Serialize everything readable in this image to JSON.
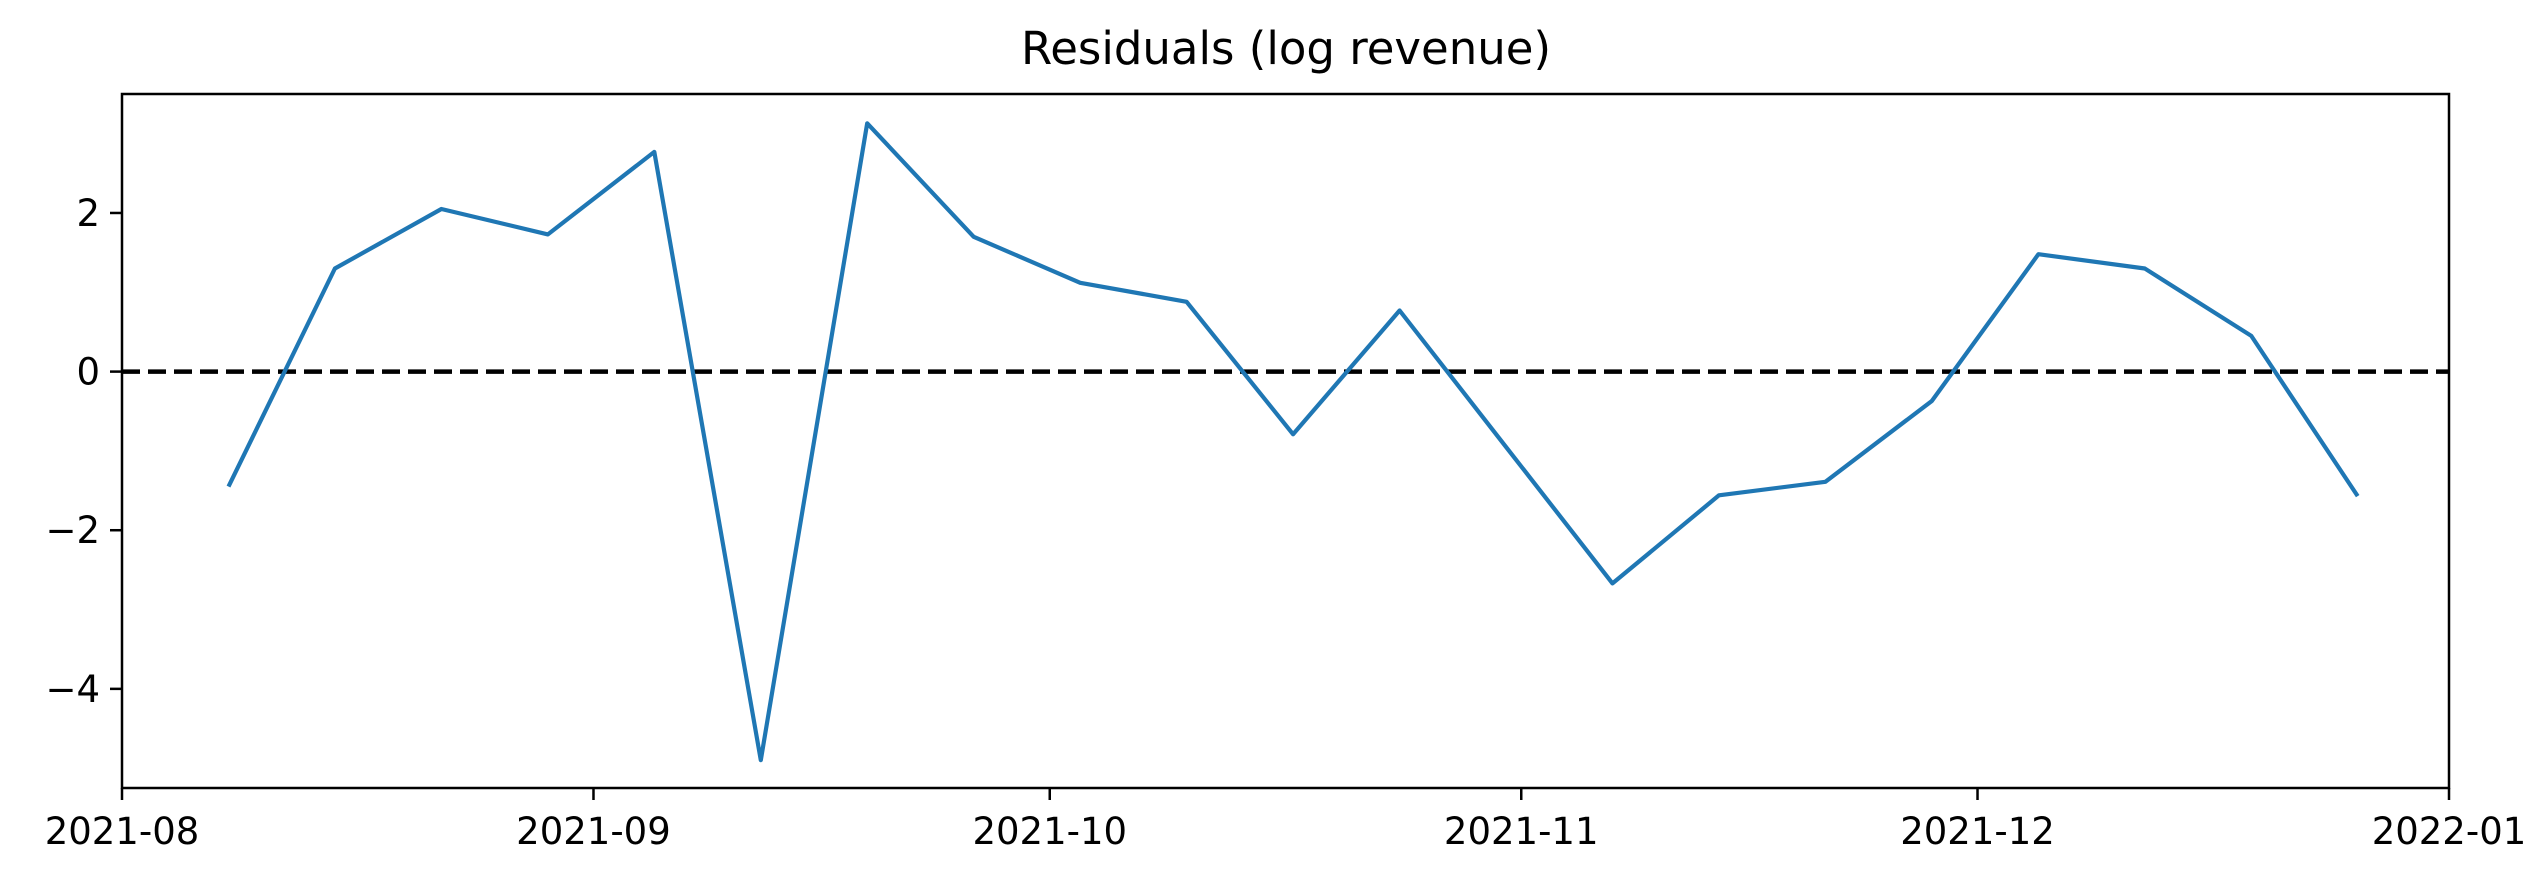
{
  "chart_data": {
    "type": "line",
    "title": "Residuals (log revenue)",
    "xlabel": "",
    "ylabel": "",
    "x_axis": {
      "type": "date",
      "range": [
        "2021-08-01",
        "2022-01-01"
      ],
      "ticks": [
        "2021-08-01",
        "2021-09-01",
        "2021-10-01",
        "2021-11-01",
        "2021-12-01",
        "2022-01-01"
      ],
      "tick_labels": [
        "2021-08",
        "2021-09",
        "2021-10",
        "2021-11",
        "2021-12",
        "2022-01"
      ]
    },
    "y_axis": {
      "range": [
        -5.25,
        3.5
      ],
      "ticks": [
        -4,
        -2,
        0,
        2
      ],
      "tick_labels": [
        "−4",
        "−2",
        "0",
        "2"
      ]
    },
    "grid": false,
    "legend": "none",
    "series": [
      {
        "color": "#1f77b4",
        "x": [
          "2021-08-08",
          "2021-08-15",
          "2021-08-22",
          "2021-08-29",
          "2021-09-05",
          "2021-09-12",
          "2021-09-19",
          "2021-09-26",
          "2021-10-03",
          "2021-10-10",
          "2021-10-17",
          "2021-10-24",
          "2021-10-31",
          "2021-11-07",
          "2021-11-14",
          "2021-11-21",
          "2021-11-28",
          "2021-12-05",
          "2021-12-12",
          "2021-12-19",
          "2021-12-26"
        ],
        "y": [
          -1.45,
          1.3,
          2.05,
          1.73,
          2.77,
          -4.9,
          3.13,
          1.7,
          1.12,
          0.88,
          -0.79,
          0.77,
          -0.95,
          -2.67,
          -1.56,
          -1.39,
          -0.37,
          1.48,
          1.3,
          0.45,
          -1.57
        ]
      }
    ],
    "reference_lines": [
      {
        "y": 0,
        "style": "dashed",
        "color": "#000000"
      }
    ]
  }
}
